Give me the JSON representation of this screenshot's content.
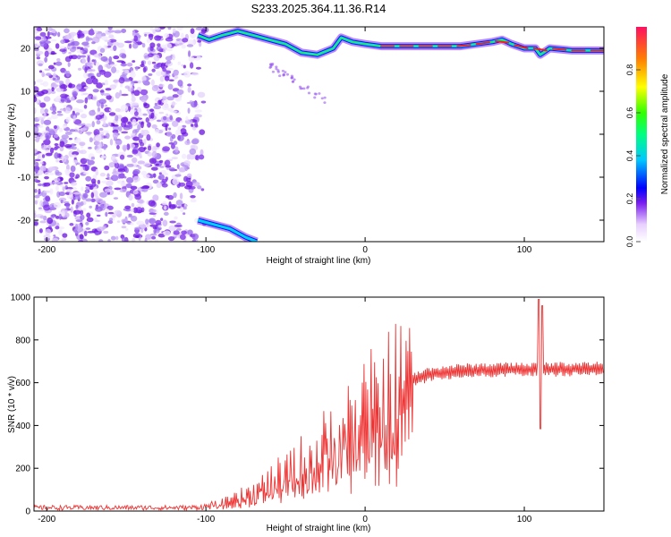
{
  "title": "S233.2025.364.11.36.R14",
  "chart_data": [
    {
      "type": "heatmap",
      "name": "spectrogram",
      "xlabel": "Height of straight line (km)",
      "ylabel": "Frequency (Hz)",
      "xlim": [
        -208,
        150
      ],
      "ylim": [
        -25,
        25
      ],
      "xticks": [
        -200,
        -100,
        0,
        100
      ],
      "yticks": [
        -20,
        -10,
        0,
        10,
        20
      ],
      "carrier_track": [
        {
          "x": -105,
          "y": 23
        },
        {
          "x": -98,
          "y": 22
        },
        {
          "x": -90,
          "y": 23
        },
        {
          "x": -80,
          "y": 24
        },
        {
          "x": -70,
          "y": 23
        },
        {
          "x": -60,
          "y": 22
        },
        {
          "x": -50,
          "y": 21
        },
        {
          "x": -40,
          "y": 19
        },
        {
          "x": -30,
          "y": 18.5
        },
        {
          "x": -20,
          "y": 20
        },
        {
          "x": -15,
          "y": 22.5
        },
        {
          "x": -8,
          "y": 21.5
        },
        {
          "x": 0,
          "y": 21
        },
        {
          "x": 10,
          "y": 20.5
        },
        {
          "x": 30,
          "y": 20.5
        },
        {
          "x": 60,
          "y": 20.5
        },
        {
          "x": 80,
          "y": 21.5
        },
        {
          "x": 86,
          "y": 22
        },
        {
          "x": 92,
          "y": 21
        },
        {
          "x": 100,
          "y": 20
        },
        {
          "x": 107,
          "y": 20
        },
        {
          "x": 110,
          "y": 18.5
        },
        {
          "x": 116,
          "y": 20
        },
        {
          "x": 130,
          "y": 19.5
        },
        {
          "x": 150,
          "y": 19.5
        }
      ],
      "mirror_track": [
        {
          "x": -105,
          "y": -20
        },
        {
          "x": -95,
          "y": -21
        },
        {
          "x": -85,
          "y": -22
        },
        {
          "x": -75,
          "y": -24
        },
        {
          "x": -68,
          "y": -25
        }
      ]
    },
    {
      "type": "line",
      "name": "snr",
      "xlabel": "Height of straight line (km)",
      "ylabel": "SNR (10 * v/v)",
      "xlim": [
        -208,
        150
      ],
      "ylim": [
        0,
        1000
      ],
      "xticks": [
        -200,
        -100,
        0,
        100
      ],
      "yticks": [
        0,
        200,
        400,
        600,
        800,
        1000
      ],
      "color": "#ee3333",
      "envelope": [
        {
          "x": -208,
          "y": 15
        },
        {
          "x": -110,
          "y": 15
        },
        {
          "x": -100,
          "y": 20
        },
        {
          "x": -90,
          "y": 35
        },
        {
          "x": -80,
          "y": 60
        },
        {
          "x": -70,
          "y": 90
        },
        {
          "x": -60,
          "y": 130
        },
        {
          "x": -50,
          "y": 170
        },
        {
          "x": -40,
          "y": 220
        },
        {
          "x": -30,
          "y": 270
        },
        {
          "x": -20,
          "y": 330
        },
        {
          "x": -10,
          "y": 390
        },
        {
          "x": 0,
          "y": 440
        },
        {
          "x": 10,
          "y": 500
        },
        {
          "x": 20,
          "y": 560
        },
        {
          "x": 30,
          "y": 610
        },
        {
          "x": 40,
          "y": 640
        },
        {
          "x": 60,
          "y": 655
        },
        {
          "x": 80,
          "y": 660
        },
        {
          "x": 150,
          "y": 665
        }
      ],
      "spikes": [
        {
          "x": -60,
          "y": 300
        },
        {
          "x": -35,
          "y": 580
        },
        {
          "x": -25,
          "y": 640
        },
        {
          "x": -20,
          "y": 600
        },
        {
          "x": -12,
          "y": 640
        },
        {
          "x": 110,
          "y": 990
        },
        {
          "x": 112,
          "y": 960
        },
        {
          "x": 111,
          "y": 385
        }
      ]
    }
  ],
  "colorbar": {
    "label": "Normalized spectral amplitude",
    "ticks": [
      "0.0",
      "0.2",
      "0.4",
      "0.6",
      "0.8"
    ],
    "tick_values": [
      0,
      0.2,
      0.4,
      0.6,
      0.8
    ],
    "range": [
      0,
      1
    ]
  }
}
